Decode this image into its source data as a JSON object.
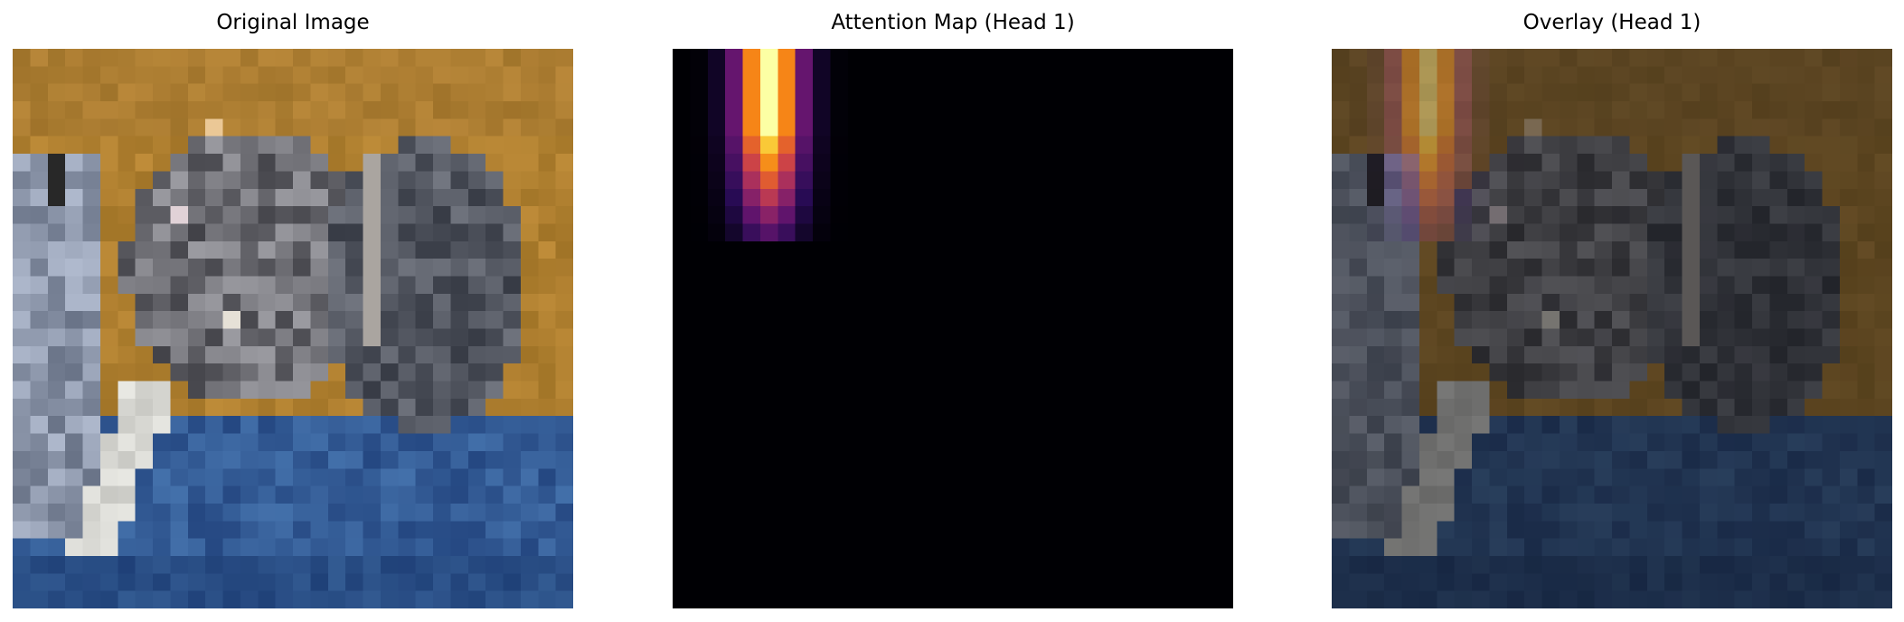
{
  "panels": [
    {
      "title": "Original Image"
    },
    {
      "title": "Attention Map (Head 1)"
    },
    {
      "title": "Overlay (Head 1)"
    }
  ]
}
